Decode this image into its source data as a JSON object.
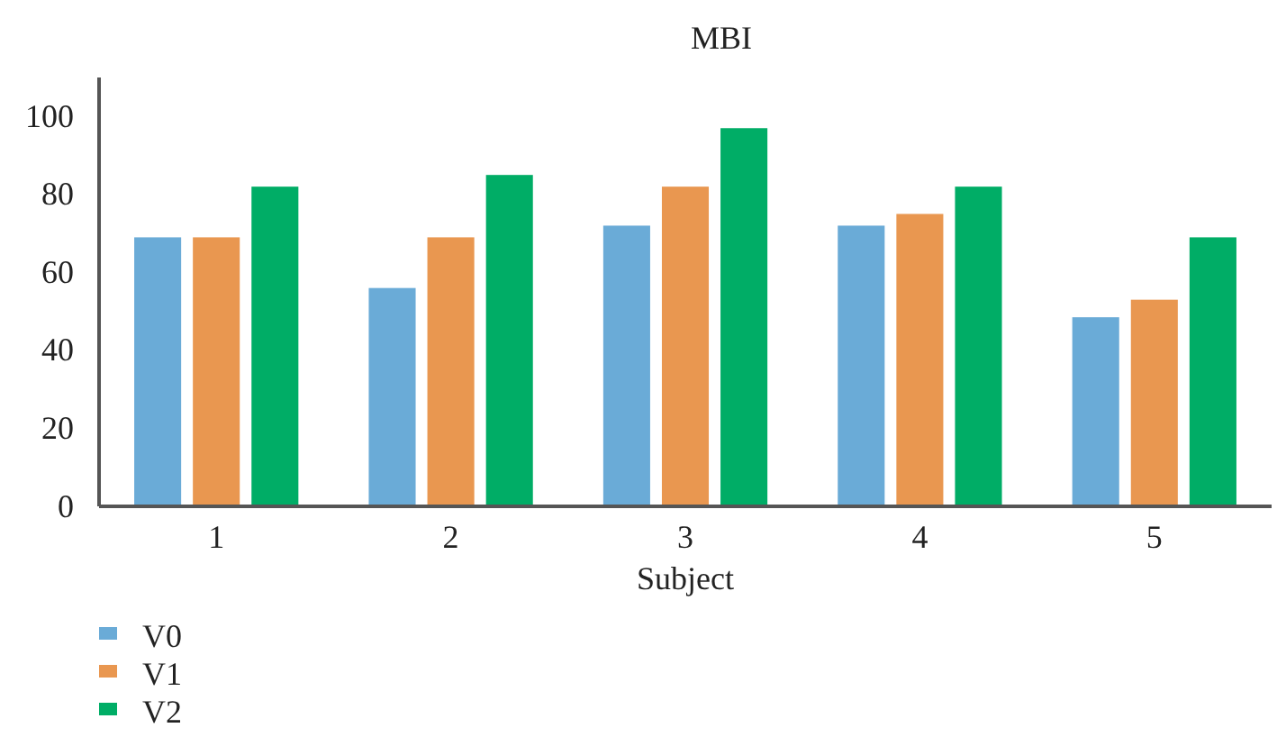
{
  "chart_data": {
    "type": "bar",
    "title": "MBI",
    "xlabel": "Subject",
    "categories": [
      "1",
      "2",
      "3",
      "4",
      "5"
    ],
    "series": [
      {
        "name": "V0",
        "color": "#6aabd7",
        "values": [
          69,
          56,
          72,
          72,
          48.5
        ]
      },
      {
        "name": "V1",
        "color": "#e99750",
        "values": [
          69,
          69,
          82,
          75,
          53
        ]
      },
      {
        "name": "V2",
        "color": "#00ad66",
        "values": [
          82,
          85,
          97,
          82,
          69
        ]
      }
    ],
    "ylim": [
      0,
      110
    ],
    "yticks": [
      0,
      20,
      40,
      60,
      80,
      100
    ],
    "grid": false,
    "legend": "bottom left"
  }
}
